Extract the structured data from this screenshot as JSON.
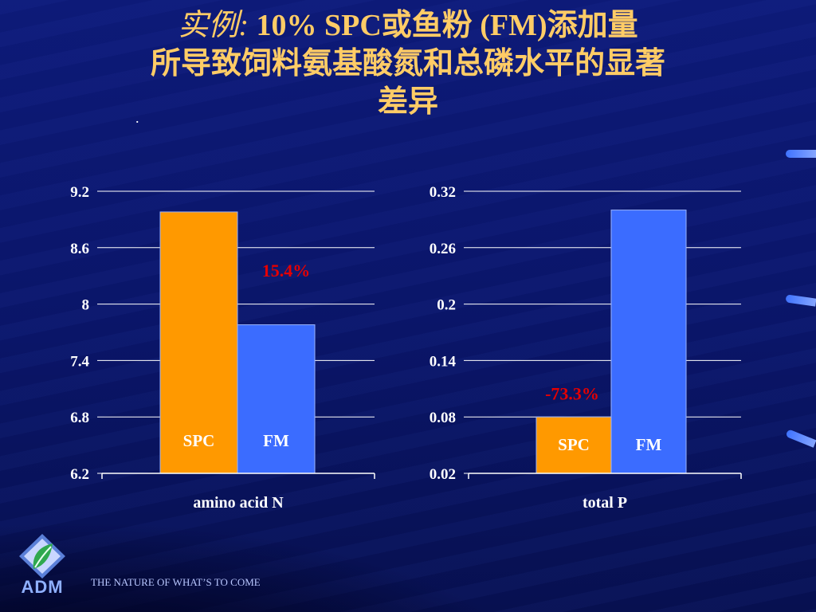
{
  "slide": {
    "title_lead": "实例:",
    "title_line1_rest": " 10% SPC或鱼粉 (FM)添加量",
    "title_line2": "所导致饲料氨基酸氮和总磷水平的显著",
    "title_line3": "差异",
    "dot": "."
  },
  "footer": {
    "logo_text": "ADM",
    "tagline": "THE NATURE OF WHAT’S TO COME"
  },
  "colors": {
    "spc_bar": "#ff9900",
    "fm_bar": "#3b6cff",
    "title": "#ffcc66",
    "annotation": "#e60000"
  },
  "chart_data": [
    {
      "type": "bar",
      "category": "amino acid N",
      "series": [
        {
          "name": "SPC",
          "value": 8.98
        },
        {
          "name": "FM",
          "value": 7.78
        }
      ],
      "ylim": [
        6.2,
        9.2
      ],
      "yticks": [
        "6.2",
        "6.8",
        "7.4",
        "8",
        "8.6",
        "9.2"
      ],
      "annotation": "15.4%",
      "grid": true
    },
    {
      "type": "bar",
      "category": "total P",
      "series": [
        {
          "name": "SPC",
          "value": 0.08
        },
        {
          "name": "FM",
          "value": 0.3
        }
      ],
      "ylim": [
        0.02,
        0.32
      ],
      "yticks": [
        "0.02",
        "0.08",
        "0.14",
        "0.2",
        "0.26",
        "0.32"
      ],
      "annotation": "-73.3%",
      "grid": true
    }
  ]
}
